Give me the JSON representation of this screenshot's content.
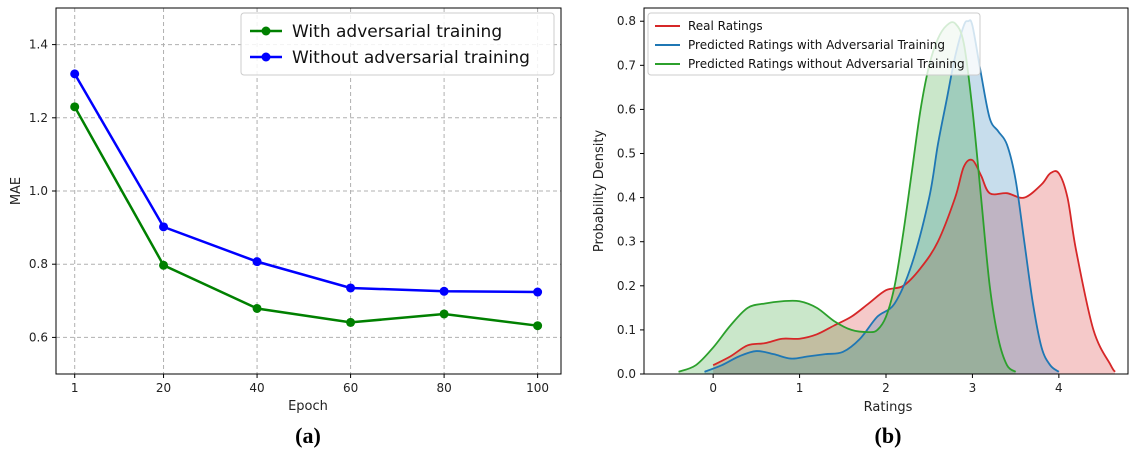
{
  "chart_data": [
    {
      "type": "line",
      "panel_label": "(a)",
      "xlabel": "Epoch",
      "ylabel": "MAE",
      "x": [
        1,
        20,
        40,
        60,
        80,
        100
      ],
      "xticks": [
        "1",
        "20",
        "40",
        "60",
        "80",
        "100"
      ],
      "xlim": [
        -3,
        105
      ],
      "yticks": [
        "0.6",
        "0.8",
        "1.0",
        "1.2",
        "1.4"
      ],
      "ylim": [
        0.5,
        1.5
      ],
      "grid": true,
      "legend_position": "top-right",
      "series": [
        {
          "name": "With adversarial training",
          "color": "#008000",
          "values": [
            1.23,
            0.797,
            0.679,
            0.641,
            0.664,
            0.632
          ]
        },
        {
          "name": "Without adversarial training",
          "color": "#0000ff",
          "values": [
            1.32,
            0.902,
            0.807,
            0.735,
            0.726,
            0.724
          ]
        }
      ]
    },
    {
      "type": "area",
      "panel_label": "(b)",
      "xlabel": "Ratings",
      "ylabel": "Probability Density",
      "xticks": [
        "0",
        "1",
        "2",
        "3",
        "4"
      ],
      "xlim": [
        -0.8,
        4.8
      ],
      "yticks": [
        "0.0",
        "0.1",
        "0.2",
        "0.3",
        "0.4",
        "0.5",
        "0.6",
        "0.7",
        "0.8"
      ],
      "ylim": [
        0,
        0.83
      ],
      "grid": false,
      "legend_position": "top-left",
      "series": [
        {
          "name": "Real Ratings",
          "color": "#d62728",
          "x": [
            0.0,
            0.2,
            0.4,
            0.6,
            0.8,
            1.0,
            1.2,
            1.4,
            1.6,
            1.8,
            2.0,
            2.2,
            2.4,
            2.6,
            2.8,
            2.9,
            3.0,
            3.1,
            3.2,
            3.4,
            3.6,
            3.8,
            3.9,
            4.0,
            4.1,
            4.2,
            4.4,
            4.6,
            4.65
          ],
          "values": [
            0.02,
            0.04,
            0.065,
            0.07,
            0.08,
            0.08,
            0.09,
            0.11,
            0.13,
            0.16,
            0.19,
            0.2,
            0.24,
            0.3,
            0.4,
            0.47,
            0.485,
            0.45,
            0.41,
            0.41,
            0.4,
            0.43,
            0.455,
            0.455,
            0.4,
            0.28,
            0.1,
            0.02,
            0.005
          ]
        },
        {
          "name": "Predicted Ratings with Adversarial Training",
          "color": "#1f77b4",
          "x": [
            -0.1,
            0.1,
            0.3,
            0.5,
            0.7,
            0.9,
            1.1,
            1.3,
            1.5,
            1.7,
            1.9,
            2.1,
            2.3,
            2.5,
            2.6,
            2.7,
            2.8,
            2.9,
            2.95,
            3.0,
            3.1,
            3.2,
            3.3,
            3.4,
            3.5,
            3.6,
            3.7,
            3.8,
            3.9,
            4.0
          ],
          "values": [
            0.005,
            0.02,
            0.04,
            0.052,
            0.045,
            0.035,
            0.04,
            0.045,
            0.05,
            0.08,
            0.13,
            0.16,
            0.25,
            0.4,
            0.52,
            0.62,
            0.72,
            0.79,
            0.8,
            0.79,
            0.68,
            0.58,
            0.55,
            0.52,
            0.44,
            0.3,
            0.16,
            0.06,
            0.02,
            0.005
          ]
        },
        {
          "name": "Predicted Ratings without Adversarial Training",
          "color": "#2ca02c",
          "x": [
            -0.4,
            -0.2,
            0.0,
            0.2,
            0.4,
            0.6,
            0.8,
            1.0,
            1.2,
            1.4,
            1.6,
            1.8,
            1.9,
            2.0,
            2.1,
            2.2,
            2.3,
            2.4,
            2.5,
            2.6,
            2.7,
            2.8,
            2.9,
            3.0,
            3.1,
            3.2,
            3.3,
            3.4,
            3.5
          ],
          "values": [
            0.005,
            0.02,
            0.06,
            0.11,
            0.15,
            0.16,
            0.165,
            0.165,
            0.15,
            0.12,
            0.1,
            0.095,
            0.1,
            0.13,
            0.2,
            0.32,
            0.46,
            0.6,
            0.7,
            0.76,
            0.79,
            0.795,
            0.75,
            0.6,
            0.4,
            0.2,
            0.08,
            0.02,
            0.005
          ]
        }
      ]
    }
  ]
}
